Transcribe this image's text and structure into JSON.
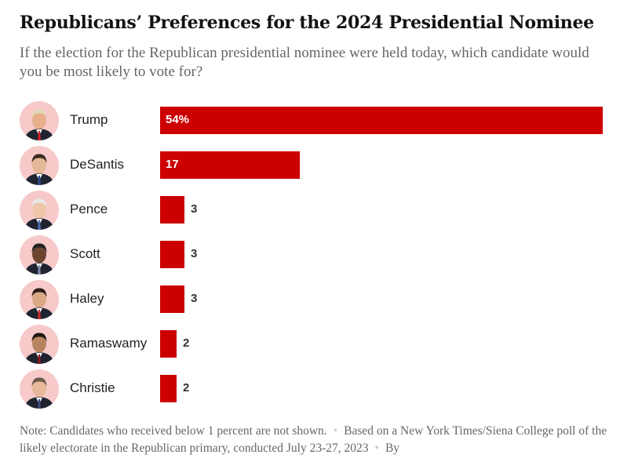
{
  "title": "Republicans’ Preferences for the 2024 Presidential Nominee",
  "subtitle": "If the election for the Republican presidential nominee were held today, which candidate would you be most likely to vote for?",
  "note": {
    "part1": "Note: Candidates who received below 1 percent are not shown.",
    "part2": "Based on a New York Times/Siena College poll of the likely electorate in the Republican primary, conducted July 23-27, 2023",
    "part3": "By"
  },
  "colors": {
    "bar": "#cc0000",
    "avatar_bg": "#f7c9c9",
    "label_inside": "#ffffff",
    "label_outside": "#333333"
  },
  "chart_data": {
    "type": "bar",
    "orientation": "horizontal",
    "title": "Republicans’ Preferences for the 2024 Presidential Nominee",
    "xlim": [
      0,
      54
    ],
    "grid": false,
    "categories": [
      "Trump",
      "DeSantis",
      "Pence",
      "Scott",
      "Haley",
      "Ramaswamy",
      "Christie"
    ],
    "values": [
      54,
      17,
      3,
      3,
      3,
      2,
      2
    ],
    "value_labels": [
      "54%",
      "17",
      "3",
      "3",
      "3",
      "2",
      "2"
    ],
    "avatar_icons": [
      "trump-portrait-icon",
      "desantis-portrait-icon",
      "pence-portrait-icon",
      "scott-portrait-icon",
      "haley-portrait-icon",
      "ramaswamy-portrait-icon",
      "christie-portrait-icon"
    ]
  }
}
